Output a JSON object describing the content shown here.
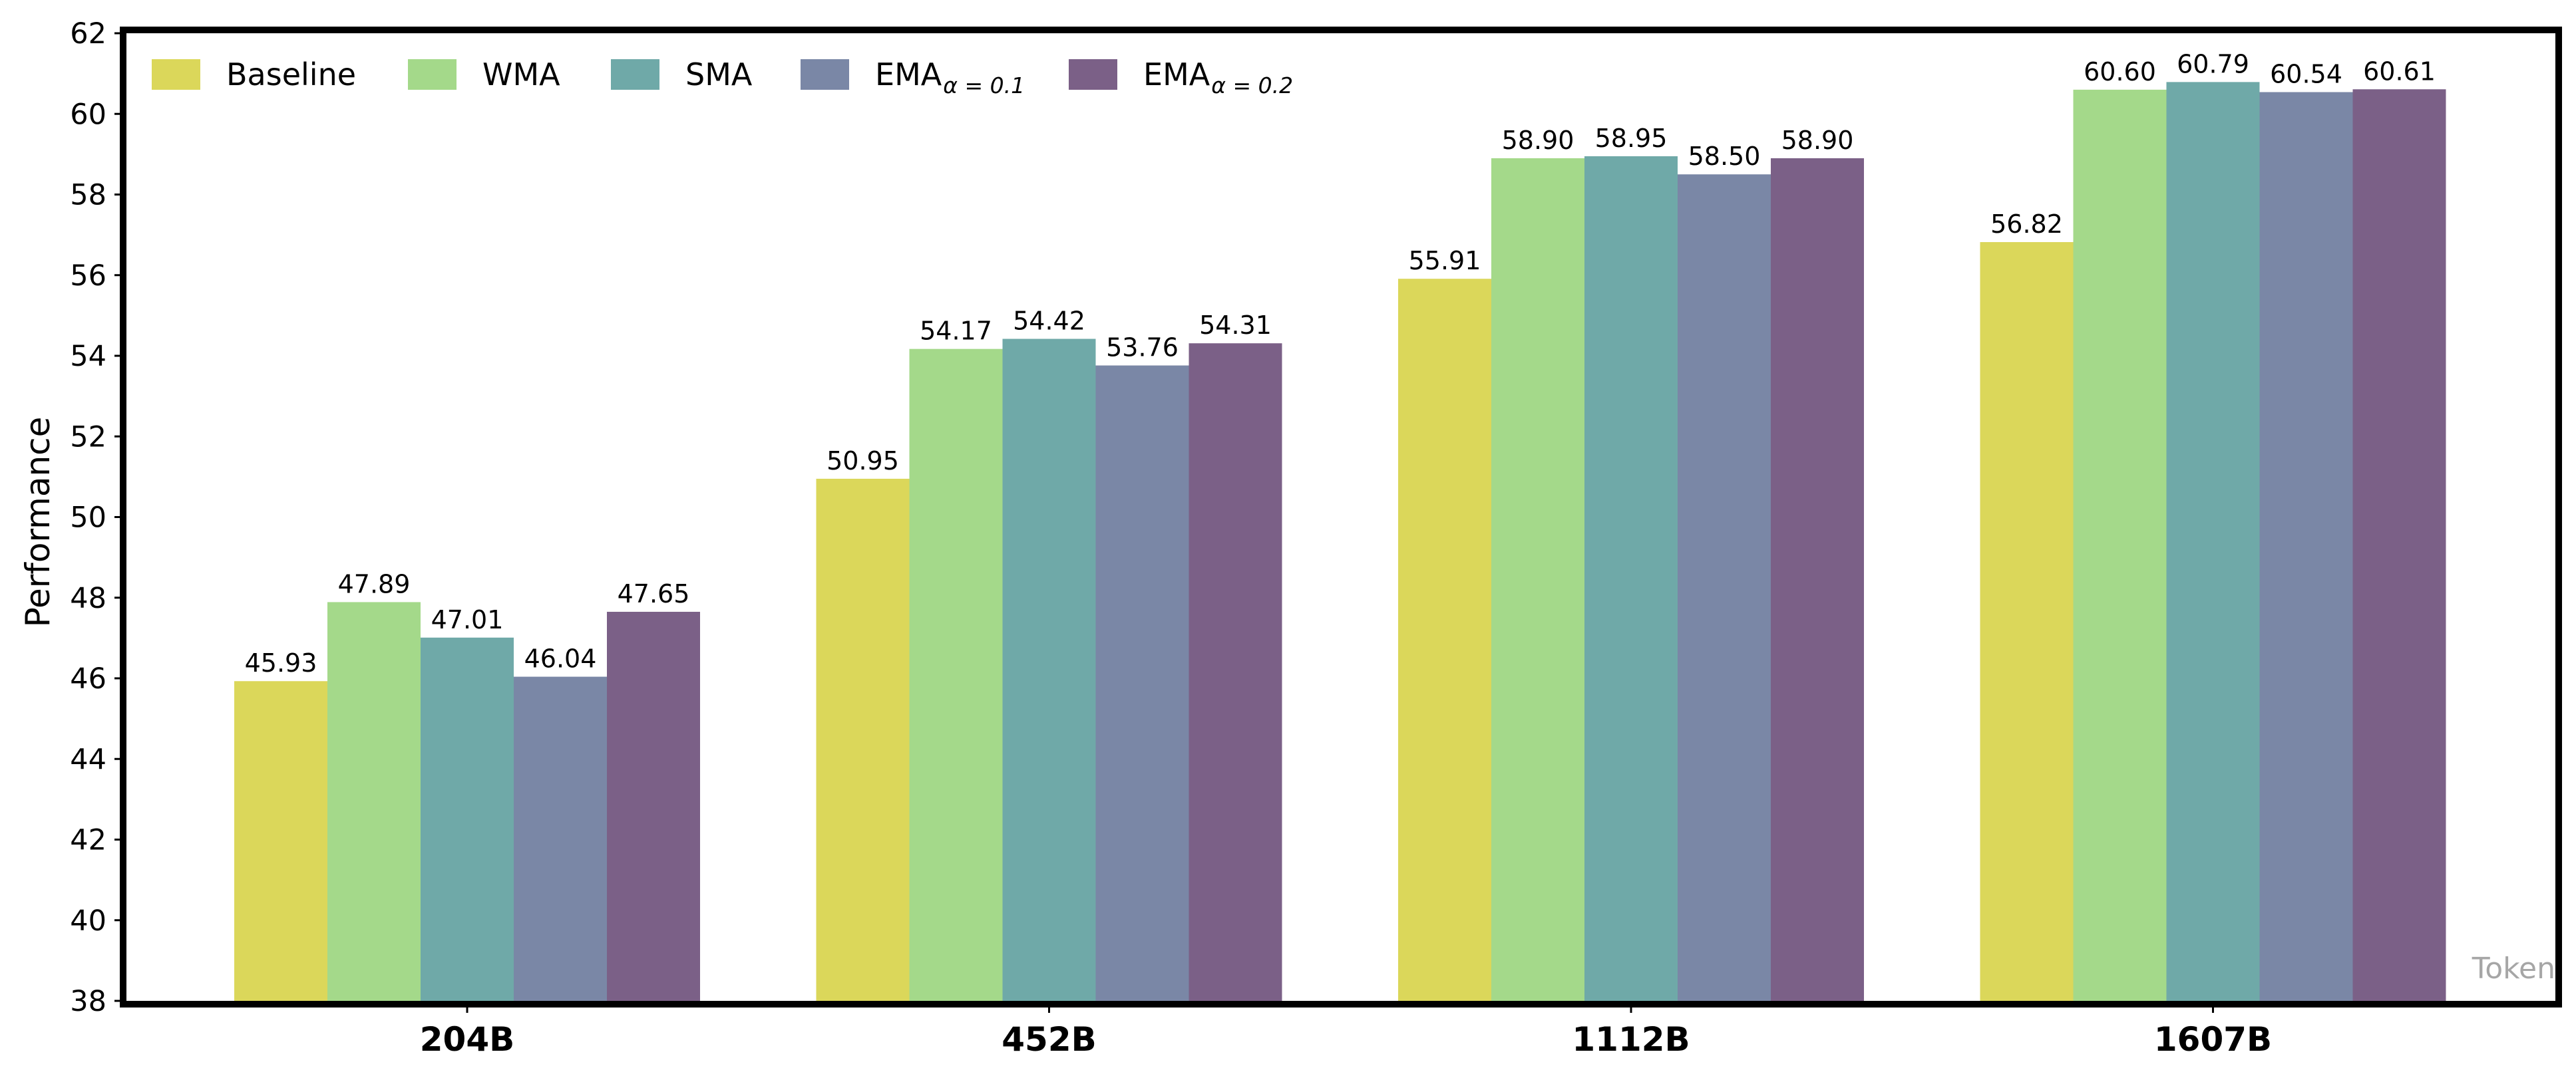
{
  "chart_data": {
    "type": "bar",
    "title": "",
    "xlabel": "",
    "ylabel": "Performance",
    "x_axis_note": "Token",
    "ylim": [
      38,
      62
    ],
    "yticks": [
      38,
      40,
      42,
      44,
      46,
      48,
      50,
      52,
      54,
      56,
      58,
      60,
      62
    ],
    "grid": false,
    "legend_position": "top-left",
    "categories": [
      "204B",
      "452B",
      "1112B",
      "1607B"
    ],
    "series": [
      {
        "name": "Baseline",
        "name_sub": "",
        "color": "#dbd75a",
        "values": [
          45.93,
          50.95,
          55.91,
          56.82
        ]
      },
      {
        "name": "WMA",
        "name_sub": "",
        "color": "#a4d98a",
        "values": [
          47.89,
          54.17,
          58.9,
          60.6
        ]
      },
      {
        "name": "SMA",
        "name_sub": "",
        "color": "#6fa9a8",
        "values": [
          47.01,
          54.42,
          58.95,
          60.79
        ]
      },
      {
        "name": "EMA",
        "name_sub": "α = 0.1",
        "color": "#7a87a6",
        "values": [
          46.04,
          53.76,
          58.5,
          60.54
        ]
      },
      {
        "name": "EMA",
        "name_sub": "α = 0.2",
        "color": "#7b6087",
        "values": [
          47.65,
          54.31,
          58.9,
          60.61
        ]
      }
    ]
  }
}
